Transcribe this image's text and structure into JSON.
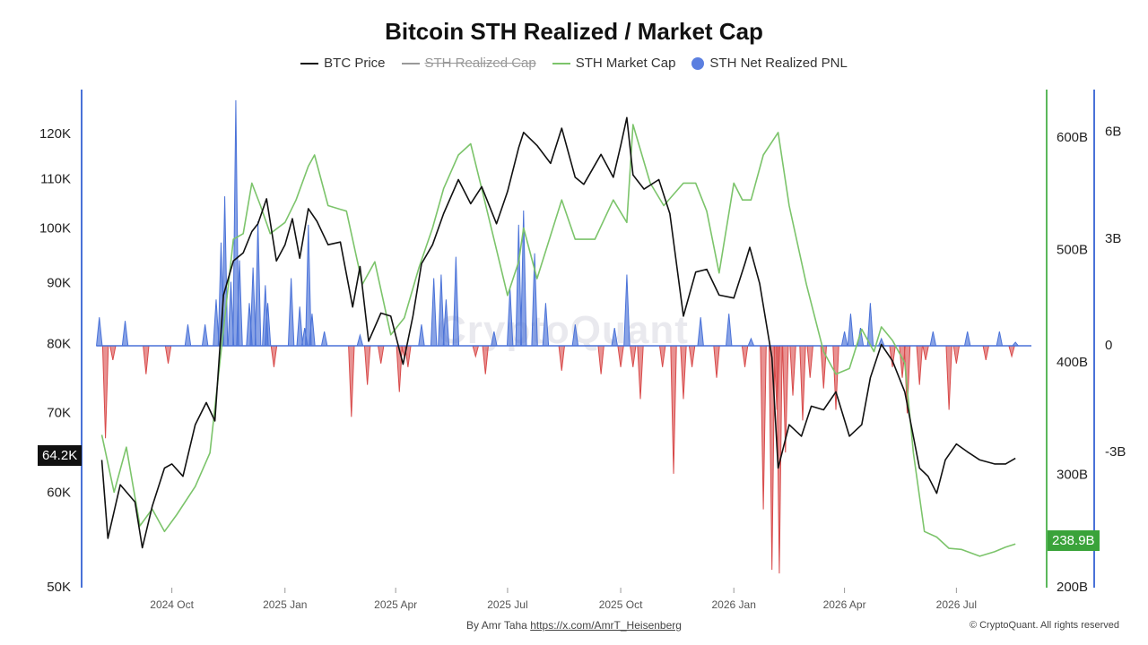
{
  "title": "Bitcoin STH Realized / Market Cap",
  "watermark": "CryptoQuant",
  "legend": [
    {
      "label": "BTC Price",
      "color": "#111111",
      "marker": "line",
      "enabled": true
    },
    {
      "label": "STH Realized Cap",
      "color": "#999999",
      "marker": "line",
      "enabled": false
    },
    {
      "label": "STH Market Cap",
      "color": "#7cc46b",
      "marker": "line",
      "enabled": true
    },
    {
      "label": "STH Net Realized PNL",
      "color": "#5b7fe0",
      "marker": "dot",
      "enabled": true
    }
  ],
  "footer": {
    "author_prefix": "By Amr Taha",
    "author_link": "https://x.com/AmrT_Heisenberg",
    "copyright": "© CryptoQuant. All rights reserved"
  },
  "badges": {
    "price": "64.2K",
    "market_cap": "238.9B"
  },
  "colors": {
    "price": "#111111",
    "market_cap": "#7cc46b",
    "pnl_pos": "#4a72d8",
    "pnl_neg": "#d84a4a",
    "left_axis": "#4a72d8",
    "right_axis_mcap": "#5cb85c",
    "right_axis_pnl": "#4a72d8"
  },
  "chart_data": {
    "type": "line",
    "x_labels": [
      "2024 Oct",
      "2025 Jan",
      "2025 Apr",
      "2025 Jul",
      "2025 Oct",
      "2026 Jan",
      "2026 Apr",
      "2026 Jul"
    ],
    "x_range": [
      "2024-08-01",
      "2026-08-31"
    ],
    "left_axis": {
      "scale": "log",
      "range": [
        50000,
        130000
      ],
      "ticks": [
        "120K",
        "110K",
        "100K",
        "90K",
        "80K",
        "70K",
        "60K",
        "50K"
      ],
      "tick_values": [
        120000,
        110000,
        100000,
        90000,
        80000,
        70000,
        60000,
        50000
      ]
    },
    "right_axis_mcap": {
      "range": [
        200,
        640
      ],
      "ticks": [
        "600B",
        "500B",
        "400B",
        "300B",
        "200B"
      ],
      "tick_values": [
        600,
        500,
        400,
        300,
        200
      ]
    },
    "right_axis_pnl": {
      "range": [
        -6.8,
        7.1
      ],
      "ticks": [
        "6B",
        "3B",
        "0",
        "-3B"
      ],
      "tick_values": [
        6,
        3,
        0,
        -3
      ]
    },
    "series": [
      {
        "name": "BTC Price",
        "axis": "left",
        "unit": "USD",
        "x": [
          "2024-08-05",
          "2024-08-10",
          "2024-08-20",
          "2024-09-01",
          "2024-09-07",
          "2024-09-15",
          "2024-09-25",
          "2024-10-01",
          "2024-10-10",
          "2024-10-20",
          "2024-10-29",
          "2024-11-05",
          "2024-11-12",
          "2024-11-20",
          "2024-11-28",
          "2024-12-05",
          "2024-12-10",
          "2024-12-17",
          "2024-12-25",
          "2025-01-01",
          "2025-01-07",
          "2025-01-13",
          "2025-01-20",
          "2025-01-27",
          "2025-02-05",
          "2025-02-15",
          "2025-02-25",
          "2025-03-03",
          "2025-03-10",
          "2025-03-20",
          "2025-03-28",
          "2025-04-07",
          "2025-04-15",
          "2025-04-22",
          "2025-05-01",
          "2025-05-10",
          "2025-05-22",
          "2025-06-01",
          "2025-06-10",
          "2025-06-22",
          "2025-07-01",
          "2025-07-10",
          "2025-07-14",
          "2025-07-25",
          "2025-08-05",
          "2025-08-14",
          "2025-08-25",
          "2025-09-01",
          "2025-09-15",
          "2025-09-25",
          "2025-10-01",
          "2025-10-06",
          "2025-10-11",
          "2025-10-20",
          "2025-11-01",
          "2025-11-10",
          "2025-11-21",
          "2025-12-01",
          "2025-12-10",
          "2025-12-20",
          "2026-01-01",
          "2026-01-10",
          "2026-01-14",
          "2026-01-22",
          "2026-02-01",
          "2026-02-06",
          "2026-02-15",
          "2026-02-25",
          "2026-03-05",
          "2026-03-15",
          "2026-03-25",
          "2026-04-05",
          "2026-04-15",
          "2026-04-22",
          "2026-05-01",
          "2026-05-10",
          "2026-05-20",
          "2026-06-01",
          "2026-06-08",
          "2026-06-15",
          "2026-06-22",
          "2026-07-01",
          "2026-07-10",
          "2026-07-20",
          "2026-08-01",
          "2026-08-10",
          "2026-08-18"
        ],
        "y": [
          64000,
          55000,
          61000,
          59000,
          54000,
          58500,
          63000,
          63500,
          62000,
          68500,
          71500,
          69000,
          88000,
          94000,
          95500,
          99500,
          101000,
          106000,
          94000,
          97000,
          102000,
          94500,
          104000,
          101500,
          97000,
          97500,
          86000,
          93000,
          80500,
          85000,
          84500,
          77000,
          84500,
          93500,
          97000,
          103000,
          110000,
          105000,
          108500,
          101000,
          107500,
          117000,
          120500,
          117500,
          113500,
          121500,
          110500,
          109000,
          115500,
          110500,
          117500,
          124000,
          111000,
          108000,
          110000,
          103000,
          84500,
          92000,
          92500,
          88000,
          87500,
          93500,
          96500,
          90000,
          78000,
          63000,
          68500,
          67000,
          71000,
          70500,
          73000,
          67000,
          68500,
          75000,
          80000,
          77500,
          73000,
          63000,
          62000,
          60000,
          64000,
          66000,
          65000,
          64000,
          63500,
          63500,
          64200
        ]
      },
      {
        "name": "STH Market Cap",
        "axis": "right_mcap",
        "unit": "B USD",
        "x": [
          "2024-08-05",
          "2024-08-15",
          "2024-08-25",
          "2024-09-05",
          "2024-09-15",
          "2024-09-25",
          "2024-10-05",
          "2024-10-20",
          "2024-11-01",
          "2024-11-12",
          "2024-11-20",
          "2024-11-28",
          "2024-12-05",
          "2024-12-12",
          "2024-12-20",
          "2025-01-01",
          "2025-01-10",
          "2025-01-20",
          "2025-01-25",
          "2025-02-05",
          "2025-02-20",
          "2025-03-05",
          "2025-03-15",
          "2025-03-28",
          "2025-04-08",
          "2025-04-20",
          "2025-05-01",
          "2025-05-10",
          "2025-05-22",
          "2025-06-01",
          "2025-06-10",
          "2025-06-20",
          "2025-07-01",
          "2025-07-10",
          "2025-07-14",
          "2025-07-25",
          "2025-08-14",
          "2025-08-25",
          "2025-09-10",
          "2025-09-25",
          "2025-10-06",
          "2025-10-11",
          "2025-10-25",
          "2025-11-05",
          "2025-11-21",
          "2025-12-01",
          "2025-12-10",
          "2025-12-20",
          "2026-01-01",
          "2026-01-08",
          "2026-01-15",
          "2026-01-25",
          "2026-02-06",
          "2026-02-15",
          "2026-03-01",
          "2026-03-15",
          "2026-03-25",
          "2026-04-05",
          "2026-04-15",
          "2026-04-25",
          "2026-05-01",
          "2026-05-10",
          "2026-05-20",
          "2026-05-27",
          "2026-06-05",
          "2026-06-15",
          "2026-06-25",
          "2026-07-05",
          "2026-07-20",
          "2026-08-01",
          "2026-08-10",
          "2026-08-18"
        ],
        "y": [
          336,
          285,
          325,
          255,
          270,
          250,
          265,
          290,
          320,
          430,
          510,
          515,
          560,
          540,
          515,
          525,
          545,
          575,
          585,
          540,
          535,
          470,
          490,
          425,
          440,
          485,
          520,
          555,
          585,
          595,
          555,
          510,
          460,
          490,
          520,
          475,
          545,
          510,
          510,
          545,
          525,
          612,
          560,
          540,
          560,
          560,
          535,
          480,
          560,
          545,
          545,
          585,
          605,
          540,
          470,
          410,
          390,
          395,
          430,
          410,
          432,
          420,
          400,
          320,
          250,
          245,
          235,
          234,
          228,
          232,
          236,
          238.9
        ]
      },
      {
        "name": "STH Net Realized PNL",
        "axis": "right_pnl",
        "unit": "B USD",
        "x": [
          "2024-08-03",
          "2024-08-08",
          "2024-08-14",
          "2024-08-24",
          "2024-09-10",
          "2024-09-28",
          "2024-10-14",
          "2024-10-28",
          "2024-11-06",
          "2024-11-10",
          "2024-11-13",
          "2024-11-18",
          "2024-11-22",
          "2024-11-25",
          "2024-12-03",
          "2024-12-06",
          "2024-12-10",
          "2024-12-16",
          "2024-12-18",
          "2024-12-23",
          "2025-01-06",
          "2025-01-13",
          "2025-01-17",
          "2025-01-20",
          "2025-01-23",
          "2025-02-02",
          "2025-02-24",
          "2025-03-03",
          "2025-03-09",
          "2025-03-20",
          "2025-04-04",
          "2025-04-08",
          "2025-04-11",
          "2025-04-22",
          "2025-05-02",
          "2025-05-08",
          "2025-05-12",
          "2025-05-20",
          "2025-06-05",
          "2025-06-13",
          "2025-06-20",
          "2025-07-03",
          "2025-07-10",
          "2025-07-14",
          "2025-07-23",
          "2025-08-01",
          "2025-08-14",
          "2025-08-25",
          "2025-09-15",
          "2025-09-26",
          "2025-10-01",
          "2025-10-06",
          "2025-10-11",
          "2025-10-17",
          "2025-11-04",
          "2025-11-13",
          "2025-11-21",
          "2025-11-28",
          "2025-12-05",
          "2025-12-18",
          "2025-12-28",
          "2026-01-10",
          "2026-01-15",
          "2026-01-25",
          "2026-02-01",
          "2026-02-05",
          "2026-02-07",
          "2026-02-12",
          "2026-02-18",
          "2026-02-26",
          "2026-03-04",
          "2026-03-15",
          "2026-03-25",
          "2026-04-01",
          "2026-04-06",
          "2026-04-14",
          "2026-04-22",
          "2026-05-01",
          "2026-05-10",
          "2026-05-18",
          "2026-05-22",
          "2026-06-01",
          "2026-06-06",
          "2026-06-12",
          "2026-06-25",
          "2026-07-01",
          "2026-07-10",
          "2026-07-25",
          "2026-08-05",
          "2026-08-15",
          "2026-08-18"
        ],
        "y": [
          0.8,
          -2.6,
          -0.4,
          0.7,
          -0.8,
          -0.5,
          0.6,
          0.6,
          1.3,
          2.9,
          4.2,
          1.8,
          6.9,
          2.4,
          1.2,
          2.2,
          3.5,
          1.7,
          1.2,
          -0.6,
          1.9,
          1.1,
          0.5,
          3.4,
          0.9,
          0.4,
          -2.0,
          0.3,
          -1.1,
          -0.5,
          -1.3,
          -0.3,
          -0.6,
          0.6,
          1.9,
          2.0,
          1.3,
          2.5,
          -0.3,
          -0.8,
          0.4,
          1.6,
          3.4,
          3.8,
          2.6,
          1.2,
          -0.7,
          0.6,
          -0.8,
          0.5,
          -0.6,
          2.0,
          -0.6,
          -1.5,
          -0.6,
          -3.6,
          -1.5,
          -0.6,
          0.8,
          -0.9,
          0.9,
          -0.6,
          0.2,
          -4.6,
          -6.3,
          -1.8,
          -6.4,
          -3.0,
          -1.4,
          -2.1,
          -0.9,
          -1.2,
          -1.8,
          0.4,
          0.9,
          0.5,
          1.2,
          0.2,
          -0.6,
          -0.9,
          -1.9,
          -1.1,
          -0.4,
          0.4,
          -1.8,
          -0.5,
          0.4,
          -0.4,
          0.4,
          -0.3,
          0.1
        ]
      }
    ]
  }
}
